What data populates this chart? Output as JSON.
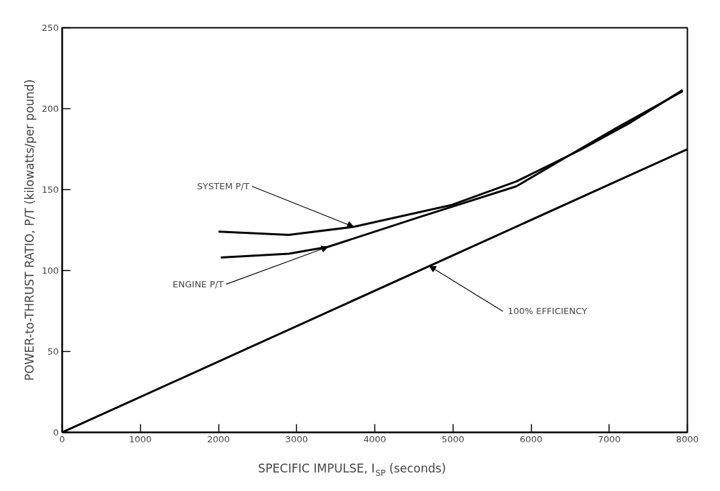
{
  "chart_data": {
    "type": "line",
    "xlabel": "SPECIFIC IMPULSE, I$_{SP}$ (seconds)",
    "ylabel": "POWER-to-THRUST RATIO, P/T (kilowatts/per pound)",
    "xlim": [
      0,
      8000
    ],
    "ylim": [
      0,
      250
    ],
    "xticks": [
      0,
      1000,
      2000,
      3000,
      4000,
      5000,
      6000,
      7000,
      8000
    ],
    "yticks": [
      0,
      50,
      100,
      150,
      200,
      250
    ],
    "grid": false,
    "marker": "none",
    "line_style": "solid",
    "series": [
      {
        "color": "#000000",
        "x": [
          2000,
          2900,
          3730,
          4990,
          5810,
          6650,
          7280,
          7940
        ],
        "values": [
          124,
          122,
          127,
          140.6,
          155,
          175,
          191.7,
          211.5
        ]
      },
      {
        "color": "#000000",
        "x": [
          2030,
          2900,
          3400,
          4570,
          5810,
          6440,
          7070,
          7940
        ],
        "values": [
          108,
          110.4,
          114.6,
          133,
          152,
          169.8,
          187.5,
          210.8
        ]
      },
      {
        "color": "#000000",
        "x": [
          0,
          8000
        ],
        "values": [
          0,
          175
        ]
      }
    ],
    "annotations": [
      {
        "text": "SYSTEM P/T",
        "x": 3730,
        "y": 127
      },
      {
        "text": "ENGINE P/T",
        "x": 3400,
        "y": 114.6
      },
      {
        "text": "100% EFFICIENCY",
        "x": 4700,
        "y": 102.8
      }
    ]
  }
}
